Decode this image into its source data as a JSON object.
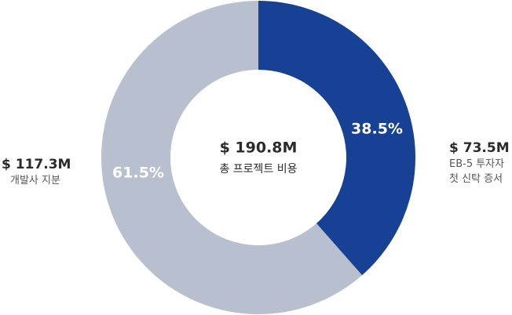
{
  "chart_data": {
    "type": "pie",
    "subtype": "donut",
    "center": {
      "value": "$ 190.8M",
      "label": "총 프로젝트 비용"
    },
    "slices": [
      {
        "value": 73.5,
        "percent_label": "38.5%",
        "amount_label": "$ 73.5M",
        "category_lines": [
          "EB-5 투자자",
          "첫 신탁 증서"
        ],
        "color": "#164194"
      },
      {
        "value": 117.3,
        "percent_label": "61.5%",
        "amount_label": "$ 117.3M",
        "category_lines": [
          "개발사 지분"
        ],
        "color": "#b8bfcf"
      }
    ]
  }
}
